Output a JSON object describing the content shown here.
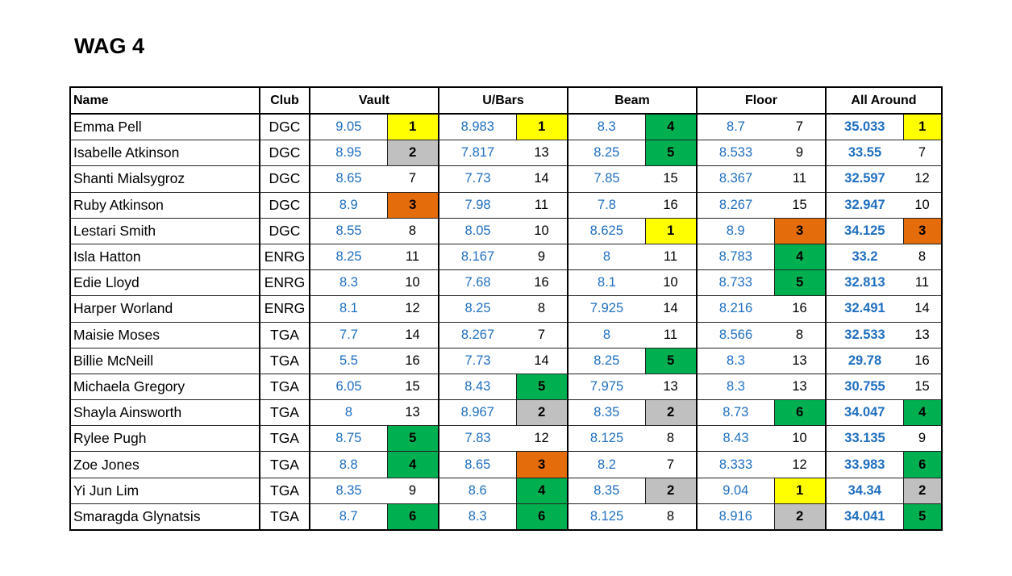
{
  "title": "WAG 4",
  "headers": {
    "name": "Name",
    "club": "Club",
    "vault": "Vault",
    "bars": "U/Bars",
    "beam": "Beam",
    "floor": "Floor",
    "all_around": "All Around"
  },
  "highlight_colors": {
    "rank_1": "#ffff00",
    "rank_2": "#c0c0c0",
    "rank_3": "#e46c0a",
    "rank_4_6": "#00b050",
    "score_text": "#1f6fbf"
  },
  "rows": [
    {
      "name": "Emma Pell",
      "club": "DGC",
      "vault": "9.05",
      "vault_rank": "1",
      "bars": "8.983",
      "bars_rank": "1",
      "beam": "8.3",
      "beam_rank": "4",
      "floor": "8.7",
      "floor_rank": "7",
      "aa": "35.033",
      "aa_rank": "1"
    },
    {
      "name": "Isabelle Atkinson",
      "club": "DGC",
      "vault": "8.95",
      "vault_rank": "2",
      "bars": "7.817",
      "bars_rank": "13",
      "beam": "8.25",
      "beam_rank": "5",
      "floor": "8.533",
      "floor_rank": "9",
      "aa": "33.55",
      "aa_rank": "7"
    },
    {
      "name": "Shanti Mialsygroz",
      "club": "DGC",
      "vault": "8.65",
      "vault_rank": "7",
      "bars": "7.73",
      "bars_rank": "14",
      "beam": "7.85",
      "beam_rank": "15",
      "floor": "8.367",
      "floor_rank": "11",
      "aa": "32.597",
      "aa_rank": "12"
    },
    {
      "name": "Ruby Atkinson",
      "club": "DGC",
      "vault": "8.9",
      "vault_rank": "3",
      "bars": "7.98",
      "bars_rank": "11",
      "beam": "7.8",
      "beam_rank": "16",
      "floor": "8.267",
      "floor_rank": "15",
      "aa": "32.947",
      "aa_rank": "10"
    },
    {
      "name": "Lestari Smith",
      "club": "DGC",
      "vault": "8.55",
      "vault_rank": "8",
      "bars": "8.05",
      "bars_rank": "10",
      "beam": "8.625",
      "beam_rank": "1",
      "floor": "8.9",
      "floor_rank": "3",
      "aa": "34.125",
      "aa_rank": "3"
    },
    {
      "name": "Isla Hatton",
      "club": "ENRG",
      "vault": "8.25",
      "vault_rank": "11",
      "bars": "8.167",
      "bars_rank": "9",
      "beam": "8",
      "beam_rank": "11",
      "floor": "8.783",
      "floor_rank": "4",
      "aa": "33.2",
      "aa_rank": "8"
    },
    {
      "name": "Edie Lloyd",
      "club": "ENRG",
      "vault": "8.3",
      "vault_rank": "10",
      "bars": "7.68",
      "bars_rank": "16",
      "beam": "8.1",
      "beam_rank": "10",
      "floor": "8.733",
      "floor_rank": "5",
      "aa": "32.813",
      "aa_rank": "11"
    },
    {
      "name": "Harper Worland",
      "club": "ENRG",
      "vault": "8.1",
      "vault_rank": "12",
      "bars": "8.25",
      "bars_rank": "8",
      "beam": "7.925",
      "beam_rank": "14",
      "floor": "8.216",
      "floor_rank": "16",
      "aa": "32.491",
      "aa_rank": "14"
    },
    {
      "name": "Maisie Moses",
      "club": "TGA",
      "vault": "7.7",
      "vault_rank": "14",
      "bars": "8.267",
      "bars_rank": "7",
      "beam": "8",
      "beam_rank": "11",
      "floor": "8.566",
      "floor_rank": "8",
      "aa": "32.533",
      "aa_rank": "13"
    },
    {
      "name": "Billie McNeill",
      "club": "TGA",
      "vault": "5.5",
      "vault_rank": "16",
      "bars": "7.73",
      "bars_rank": "14",
      "beam": "8.25",
      "beam_rank": "5",
      "floor": "8.3",
      "floor_rank": "13",
      "aa": "29.78",
      "aa_rank": "16"
    },
    {
      "name": "Michaela Gregory",
      "club": "TGA",
      "vault": "6.05",
      "vault_rank": "15",
      "bars": "8.43",
      "bars_rank": "5",
      "beam": "7.975",
      "beam_rank": "13",
      "floor": "8.3",
      "floor_rank": "13",
      "aa": "30.755",
      "aa_rank": "15"
    },
    {
      "name": "Shayla Ainsworth",
      "club": "TGA",
      "vault": "8",
      "vault_rank": "13",
      "bars": "8.967",
      "bars_rank": "2",
      "beam": "8.35",
      "beam_rank": "2",
      "floor": "8.73",
      "floor_rank": "6",
      "aa": "34.047",
      "aa_rank": "4"
    },
    {
      "name": "Rylee Pugh",
      "club": "TGA",
      "vault": "8.75",
      "vault_rank": "5",
      "bars": "7.83",
      "bars_rank": "12",
      "beam": "8.125",
      "beam_rank": "8",
      "floor": "8.43",
      "floor_rank": "10",
      "aa": "33.135",
      "aa_rank": "9"
    },
    {
      "name": "Zoe Jones",
      "club": "TGA",
      "vault": "8.8",
      "vault_rank": "4",
      "bars": "8.65",
      "bars_rank": "3",
      "beam": "8.2",
      "beam_rank": "7",
      "floor": "8.333",
      "floor_rank": "12",
      "aa": "33.983",
      "aa_rank": "6"
    },
    {
      "name": "Yi Jun Lim",
      "club": "TGA",
      "vault": "8.35",
      "vault_rank": "9",
      "bars": "8.6",
      "bars_rank": "4",
      "beam": "8.35",
      "beam_rank": "2",
      "floor": "9.04",
      "floor_rank": "1",
      "aa": "34.34",
      "aa_rank": "2"
    },
    {
      "name": "Smaragda Glynatsis",
      "club": "TGA",
      "vault": "8.7",
      "vault_rank": "6",
      "bars": "8.3",
      "bars_rank": "6",
      "beam": "8.125",
      "beam_rank": "8",
      "floor": "8.916",
      "floor_rank": "2",
      "aa": "34.041",
      "aa_rank": "5"
    }
  ]
}
